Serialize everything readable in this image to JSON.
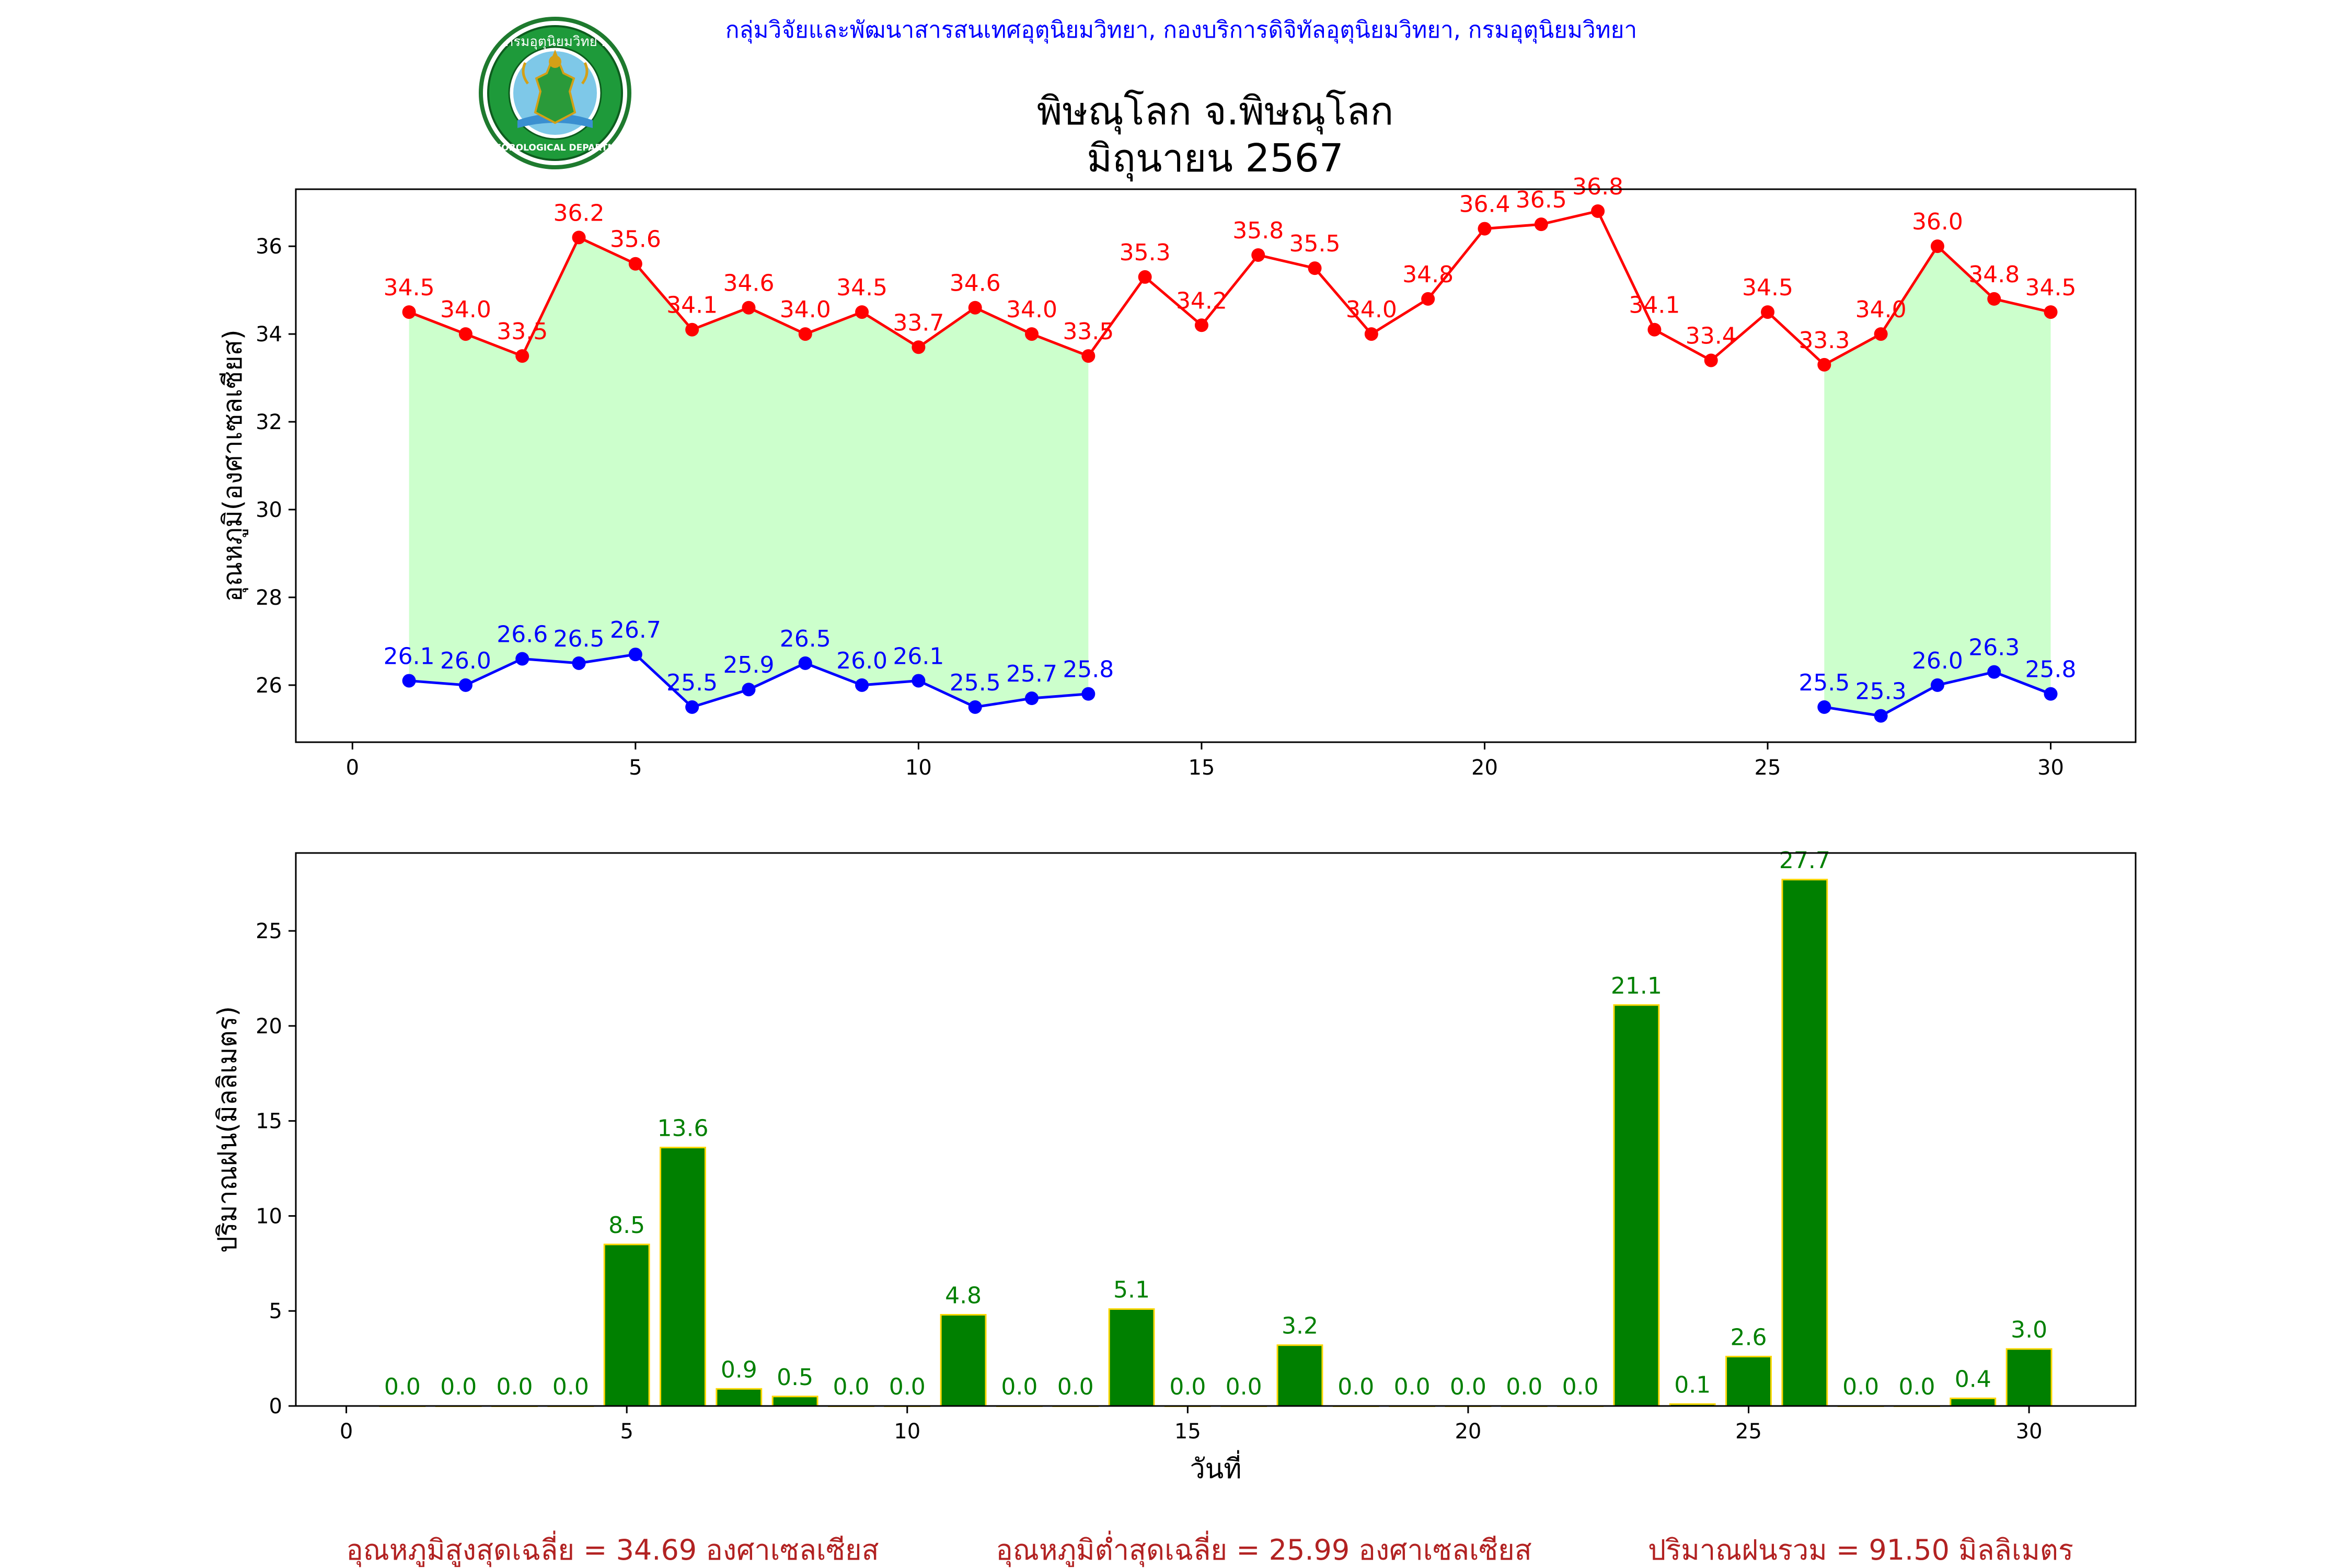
{
  "header": {
    "agency_line": "กลุ่มวิจัยและพัฒนาสารสนเทศอุตุนิยมวิทยา, กองบริการดิจิทัลอุตุนิยมวิทยา, กรมอุตุนิยมวิทยา",
    "title_line1": "พิษณุโลก จ.พิษณุโลก",
    "title_line2": "มิถุนายน 2567",
    "agency_color": "#0000ff"
  },
  "logo": {
    "top_text": "กรมอุตุนิยมวิทยา",
    "bottom_text": "METEOROLOGICAL DEPARTMENT"
  },
  "footer": {
    "avg_max": "อุณหภูมิสูงสุดเฉลี่ย = 34.69 องศาเซลเซียส",
    "avg_min": "อุณหภูมิต่ำสุดเฉลี่ย = 25.99 องศาเซลเซียส",
    "total_rain": "ปริมาณฝนรวม = 91.50 มิลลิเมตร",
    "color": "#b22222"
  },
  "chart_data": [
    {
      "type": "line",
      "ylabel": "อุณหภูมิ(องศาเซลเซียส)",
      "xlabel": "",
      "xlim": [
        -1,
        31.5
      ],
      "ylim": [
        24.7,
        37.3
      ],
      "xticks": [
        0,
        5,
        10,
        15,
        20,
        25,
        30
      ],
      "yticks": [
        26,
        28,
        30,
        32,
        34,
        36
      ],
      "grid": false,
      "fill_color": "#ccffcc",
      "series": [
        {
          "key": "max",
          "color": "#ff0000",
          "x": [
            1,
            2,
            3,
            4,
            5,
            6,
            7,
            8,
            9,
            10,
            11,
            12,
            13,
            14,
            15,
            16,
            17,
            18,
            19,
            20,
            21,
            22,
            23,
            24,
            25,
            26,
            27,
            28,
            29,
            30
          ],
          "values": [
            34.5,
            34.0,
            33.5,
            36.2,
            35.6,
            34.1,
            34.6,
            34.0,
            34.5,
            33.7,
            34.6,
            34.0,
            33.5,
            35.3,
            34.2,
            35.8,
            35.5,
            34.0,
            34.8,
            36.4,
            36.5,
            36.8,
            34.1,
            33.4,
            34.5,
            33.3,
            34.0,
            36.0,
            34.8,
            34.5
          ],
          "labels": [
            "34.5",
            "34.0",
            "33.5",
            "36.2",
            "35.6",
            "34.1",
            "34.6",
            "34.0",
            "34.5",
            "33.7",
            "34.6",
            "34.0",
            "33.5",
            "35.3",
            "34.2",
            "35.8",
            "35.5",
            "34.0",
            "34.8",
            "36.4",
            "36.5",
            "36.8",
            "34.1",
            "33.4",
            "34.5",
            "33.3",
            "34.0",
            "36.0",
            "34.8",
            "34.5"
          ]
        },
        {
          "key": "min",
          "color": "#0000ff",
          "x": [
            1,
            2,
            3,
            4,
            5,
            6,
            7,
            8,
            9,
            10,
            11,
            12,
            13,
            26,
            27,
            28,
            29,
            30
          ],
          "values": [
            26.1,
            26.0,
            26.6,
            26.5,
            26.7,
            25.5,
            25.9,
            26.5,
            26.0,
            26.1,
            25.5,
            25.7,
            25.8,
            25.5,
            25.3,
            26.0,
            26.3,
            25.8
          ],
          "labels": [
            "26.1",
            "26.0",
            "26.6",
            "26.5",
            "26.7",
            "25.5",
            "25.9",
            "26.5",
            "26.0",
            "26.1",
            "25.5",
            "25.7",
            "25.8",
            "25.5",
            "25.3",
            "26.0",
            "26.3",
            "25.8"
          ]
        }
      ]
    },
    {
      "type": "bar",
      "ylabel": "ปริมาณฝน(มิลลิเมตร)",
      "xlabel": "วันที่",
      "xlim": [
        -0.9,
        31.9
      ],
      "ylim": [
        0,
        29.1
      ],
      "xticks": [
        0,
        5,
        10,
        15,
        20,
        25,
        30
      ],
      "yticks": [
        0,
        5,
        10,
        15,
        20,
        25
      ],
      "grid": false,
      "bar_color": "#008000",
      "edge_color": "#ffd700",
      "label_color": "#008000",
      "x": [
        1,
        2,
        3,
        4,
        5,
        6,
        7,
        8,
        9,
        10,
        11,
        12,
        13,
        14,
        15,
        16,
        17,
        18,
        19,
        20,
        21,
        22,
        23,
        24,
        25,
        26,
        27,
        28,
        29,
        30
      ],
      "values": [
        0.0,
        0.0,
        0.0,
        0.0,
        8.5,
        13.6,
        0.9,
        0.5,
        0.0,
        0.0,
        4.8,
        0.0,
        0.0,
        5.1,
        0.0,
        0.0,
        3.2,
        0.0,
        0.0,
        0.0,
        0.0,
        0.0,
        21.1,
        0.1,
        2.6,
        27.7,
        0.0,
        0.0,
        0.4,
        3.0
      ],
      "labels": [
        "0.0",
        "0.0",
        "0.0",
        "0.0",
        "8.5",
        "13.6",
        "0.9",
        "0.5",
        "0.0",
        "0.0",
        "4.8",
        "0.0",
        "0.0",
        "5.1",
        "0.0",
        "0.0",
        "3.2",
        "0.0",
        "0.0",
        "0.0",
        "0.0",
        "0.0",
        "21.1",
        "0.1",
        "2.6",
        "27.7",
        "0.0",
        "0.0",
        "0.4",
        "3.0"
      ]
    }
  ]
}
